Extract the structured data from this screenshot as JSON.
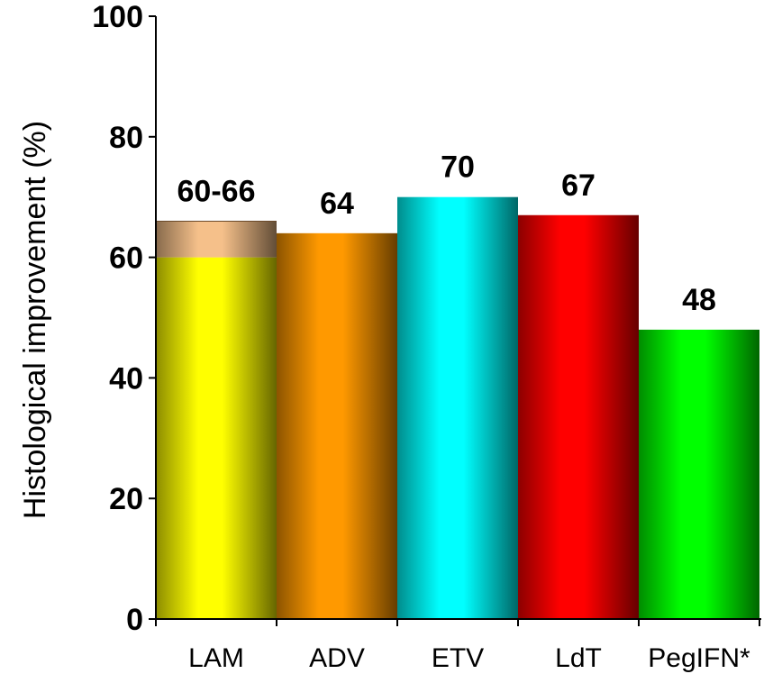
{
  "chart_data": {
    "type": "bar",
    "ylabel": "Histological improvement  (%)",
    "ylim": [
      0,
      100
    ],
    "yticks": [
      0,
      20,
      40,
      60,
      80,
      100
    ],
    "grid": false,
    "categories": [
      "LAM",
      "ADV",
      "ETV",
      "LdT",
      "PegIFN*"
    ],
    "values": [
      60,
      64,
      70,
      67,
      48
    ],
    "range_top": [
      66,
      null,
      null,
      null,
      null
    ],
    "data_labels": [
      "60-66",
      "64",
      "70",
      "67",
      "48"
    ],
    "colors": [
      "#ffff00",
      "#ff9900",
      "#00ffff",
      "#ff0000",
      "#00ff00"
    ],
    "range_color": "#f5c08a"
  }
}
